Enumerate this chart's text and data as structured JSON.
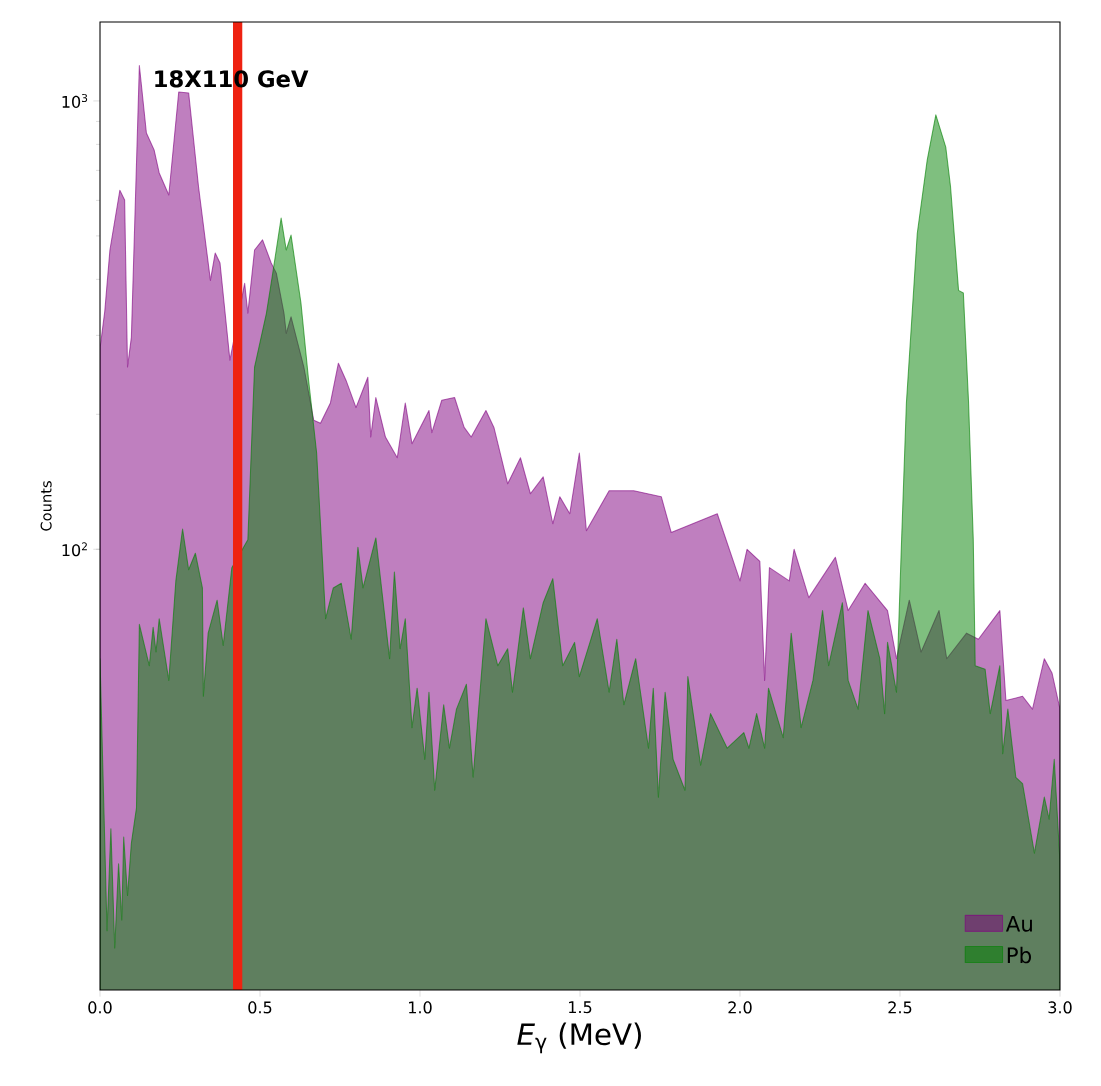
{
  "chart_data": {
    "type": "area",
    "xlabel": "*E*$_{γ}$ (MeV)",
    "ylabel": "Counts",
    "annotations": [
      "18X110 GeV"
    ],
    "xlim": [
      0,
      3
    ],
    "ylim": [
      10.4,
      1500
    ],
    "log": "y",
    "legend": "bottom right",
    "xticks": [
      {
        "value": 0,
        "label": "0.0"
      },
      0.5,
      {
        "value": 1,
        "label": "1.0"
      },
      1.5,
      {
        "value": 2,
        "label": "2.0"
      },
      2.5,
      {
        "value": 3,
        "label": "3.0"
      }
    ],
    "yticks": [
      {
        "value": 100,
        "label": "10$^{2}$"
      },
      {
        "value": 1000,
        "label": "10$^{3}$"
      }
    ],
    "ref_lines": [
      {
        "axis": "x",
        "value": 0.43,
        "color": "#ee2211"
      }
    ],
    "series": [
      {
        "name": "Au",
        "color": "#800080",
        "x": [
          0,
          0.015,
          0.031,
          0.062,
          0.077,
          0.086,
          0.098,
          0.123,
          0.145,
          0.169,
          0.185,
          0.215,
          0.246,
          0.277,
          0.308,
          0.345,
          0.36,
          0.375,
          0.406,
          0.452,
          0.462,
          0.483,
          0.508,
          0.535,
          0.551,
          0.575,
          0.582,
          0.597,
          0.637,
          0.668,
          0.689,
          0.72,
          0.745,
          0.769,
          0.8,
          0.837,
          0.846,
          0.862,
          0.892,
          0.929,
          0.954,
          0.975,
          1.028,
          1.037,
          1.068,
          1.108,
          1.138,
          1.16,
          1.206,
          1.231,
          1.274,
          1.314,
          1.345,
          1.385,
          1.415,
          1.437,
          1.468,
          1.498,
          1.52,
          1.591,
          1.668,
          1.754,
          1.785,
          1.929,
          2.0,
          2.022,
          2.062,
          2.077,
          2.092,
          2.154,
          2.169,
          2.215,
          2.298,
          2.338,
          2.391,
          2.461,
          2.489,
          2.529,
          2.566,
          2.622,
          2.646,
          2.708,
          2.745,
          2.812,
          2.831,
          2.883,
          2.914,
          2.951,
          2.975,
          3.0
        ],
        "values": [
          280,
          340,
          465,
          632,
          601,
          255,
          297,
          1200,
          848,
          778,
          691,
          617,
          1047,
          1042,
          643,
          398,
          458,
          435,
          264,
          392,
          336,
          465,
          490,
          435,
          413,
          336,
          303,
          330,
          255,
          194,
          191,
          212,
          260,
          238,
          207,
          242,
          178,
          218,
          178,
          160,
          212,
          172,
          204,
          182,
          215,
          218,
          187,
          178,
          204,
          187,
          140,
          160,
          133,
          145,
          114,
          131,
          120,
          164,
          110,
          135,
          135,
          131,
          109,
          120,
          85,
          100,
          94,
          51,
          91,
          85,
          100,
          78,
          96,
          73,
          84,
          73,
          57,
          77,
          59,
          73,
          57,
          65,
          63,
          73,
          46,
          47,
          44,
          57,
          53,
          44
        ]
      },
      {
        "name": "Pb",
        "color": "#008000",
        "x": [
          0,
          0.022,
          0.034,
          0.046,
          0.058,
          0.068,
          0.074,
          0.086,
          0.098,
          0.114,
          0.123,
          0.154,
          0.166,
          0.175,
          0.185,
          0.215,
          0.237,
          0.258,
          0.277,
          0.298,
          0.32,
          0.323,
          0.338,
          0.366,
          0.385,
          0.412,
          0.462,
          0.483,
          0.52,
          0.538,
          0.566,
          0.582,
          0.597,
          0.628,
          0.652,
          0.677,
          0.705,
          0.729,
          0.754,
          0.785,
          0.806,
          0.822,
          0.862,
          0.905,
          0.92,
          0.938,
          0.954,
          0.975,
          0.991,
          1.015,
          1.028,
          1.046,
          1.074,
          1.092,
          1.114,
          1.145,
          1.166,
          1.206,
          1.243,
          1.274,
          1.289,
          1.323,
          1.345,
          1.385,
          1.415,
          1.446,
          1.483,
          1.498,
          1.554,
          1.591,
          1.615,
          1.637,
          1.674,
          1.714,
          1.729,
          1.745,
          1.766,
          1.791,
          1.828,
          1.837,
          1.877,
          1.908,
          1.96,
          2.012,
          2.028,
          2.052,
          2.077,
          2.089,
          2.135,
          2.16,
          2.191,
          2.228,
          2.258,
          2.277,
          2.32,
          2.338,
          2.369,
          2.4,
          2.437,
          2.452,
          2.461,
          2.489,
          2.505,
          2.52,
          2.538,
          2.554,
          2.585,
          2.612,
          2.643,
          2.658,
          2.683,
          2.698,
          2.714,
          2.729,
          2.735,
          2.766,
          2.782,
          2.812,
          2.821,
          2.837,
          2.862,
          2.883,
          2.92,
          2.951,
          2.966,
          2.982,
          3.0
        ],
        "values": [
          57,
          14.1,
          23.8,
          12.9,
          19.9,
          14.9,
          22.8,
          16.9,
          22.1,
          26.5,
          68,
          55,
          67,
          59,
          70,
          51,
          85,
          111,
          90,
          98,
          82,
          47,
          65,
          77,
          61,
          91,
          105,
          255,
          336,
          405,
          548,
          465,
          502,
          354,
          238,
          164,
          70,
          82,
          84,
          63,
          101,
          82,
          106,
          57,
          89,
          60,
          70,
          40,
          49,
          34,
          48,
          29,
          45,
          36,
          44,
          50,
          31,
          70,
          55,
          60,
          48,
          74,
          57,
          76,
          86,
          55,
          62,
          52,
          70,
          48,
          63,
          45,
          57,
          36,
          49,
          28,
          48,
          34,
          29,
          52,
          33,
          43,
          36,
          39,
          36,
          43,
          36,
          49,
          38,
          65,
          40,
          51,
          73,
          55,
          76,
          51,
          44,
          73,
          57,
          43,
          62,
          48,
          105,
          212,
          336,
          507,
          738,
          931,
          789,
          643,
          378,
          373,
          215,
          105,
          55,
          54,
          43,
          55,
          35,
          44,
          31,
          30,
          21,
          28,
          25,
          34,
          20
        ]
      }
    ]
  }
}
